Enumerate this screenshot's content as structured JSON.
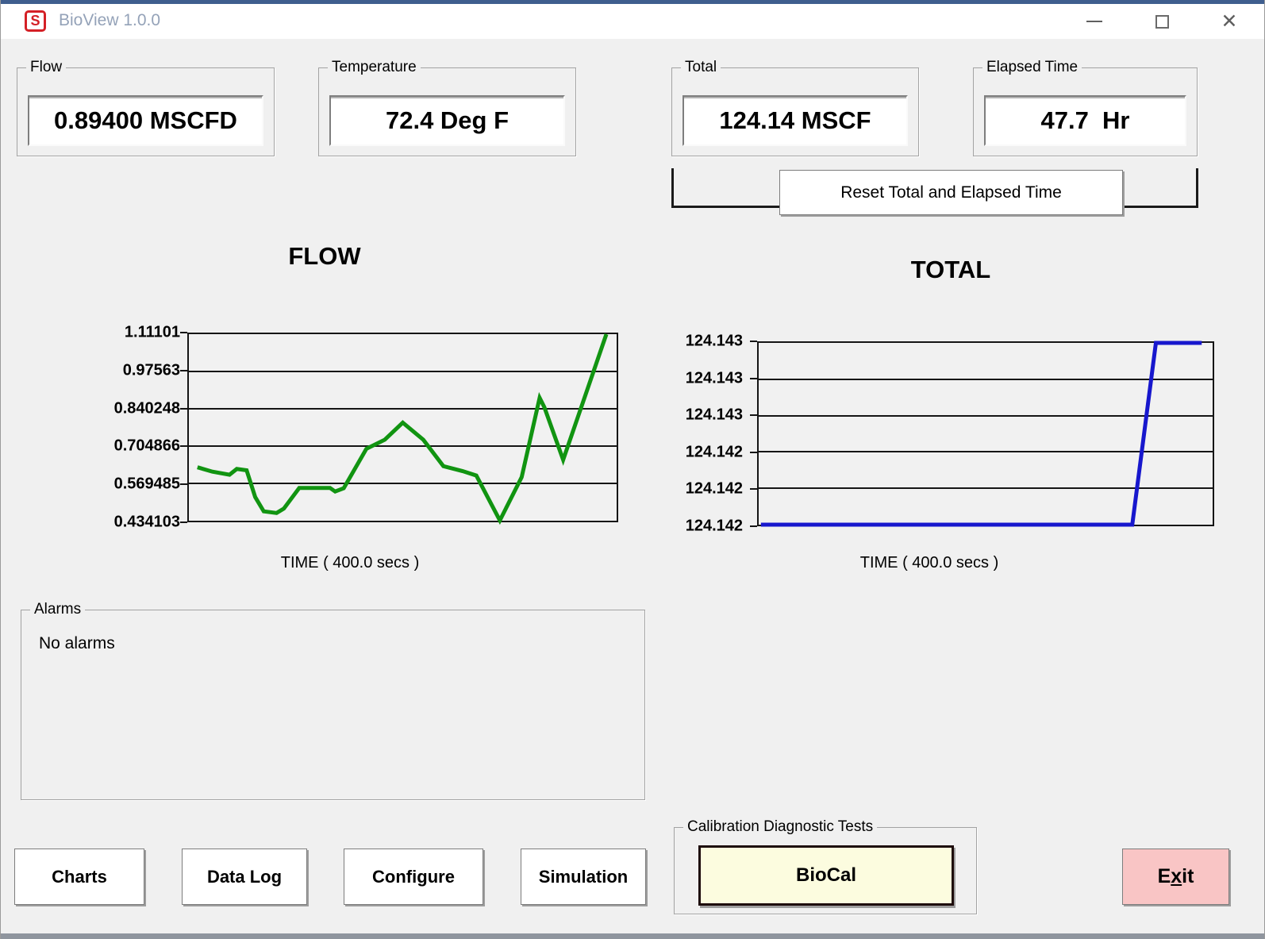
{
  "window": {
    "title": "BioView 1.0.0",
    "icon_letter": "S",
    "accent_color": "#3f5e8e"
  },
  "caption": {
    "minimize_icon": "minimize-icon",
    "maximize_icon": "maximize-icon",
    "close_glyph": "✕"
  },
  "panels": {
    "flow": {
      "label": "Flow",
      "value": "0.89400 MSCFD"
    },
    "temperature": {
      "label": "Temperature",
      "value": "72.4 Deg F"
    },
    "total": {
      "label": "Total",
      "value": "124.14 MSCF"
    },
    "elapsed": {
      "label": "Elapsed Time",
      "value": "47.7  Hr"
    }
  },
  "reset_button": "Reset Total and Elapsed Time",
  "alarms": {
    "label": "Alarms",
    "message": "No alarms"
  },
  "calibration": {
    "label": "Calibration Diagnostic Tests",
    "biocal": "BioCal"
  },
  "buttons": {
    "charts": "Charts",
    "datalog": "Data Log",
    "configure": "Configure",
    "simulation": "Simulation",
    "exit_pre": "E",
    "exit_accel": "x",
    "exit_post": "it"
  },
  "chart_data": [
    {
      "type": "line",
      "title": "FLOW",
      "xlabel": "TIME ( 400.0 secs )",
      "color": "#119411",
      "ylim": [
        0.434103,
        1.11101
      ],
      "ytick_labels": [
        "1.11101",
        "0.97563",
        "0.840248",
        "0.704866",
        "0.569485",
        "0.434103"
      ],
      "grid": true,
      "legend": "none",
      "points": [
        [
          0.02,
          0.628
        ],
        [
          0.055,
          0.612
        ],
        [
          0.095,
          0.601
        ],
        [
          0.112,
          0.622
        ],
        [
          0.135,
          0.617
        ],
        [
          0.155,
          0.52
        ],
        [
          0.175,
          0.468
        ],
        [
          0.205,
          0.462
        ],
        [
          0.222,
          0.478
        ],
        [
          0.258,
          0.553
        ],
        [
          0.33,
          0.553
        ],
        [
          0.342,
          0.54
        ],
        [
          0.362,
          0.552
        ],
        [
          0.415,
          0.695
        ],
        [
          0.458,
          0.728
        ],
        [
          0.5,
          0.79
        ],
        [
          0.548,
          0.728
        ],
        [
          0.595,
          0.632
        ],
        [
          0.64,
          0.614
        ],
        [
          0.672,
          0.598
        ],
        [
          0.727,
          0.435
        ],
        [
          0.778,
          0.592
        ],
        [
          0.82,
          0.88
        ],
        [
          0.831,
          0.846
        ],
        [
          0.875,
          0.655
        ],
        [
          0.976,
          1.11101
        ]
      ]
    },
    {
      "type": "line",
      "title": "TOTAL",
      "xlabel": "TIME ( 400.0 secs )",
      "color": "#1717cd",
      "ylim": [
        124.142,
        124.143
      ],
      "ytick_labels": [
        "124.143",
        "124.143",
        "124.143",
        "124.142",
        "124.142",
        "124.142"
      ],
      "grid": true,
      "legend": "none",
      "points": [
        [
          0.005,
          124.142
        ],
        [
          0.823,
          124.142
        ],
        [
          0.836,
          124.14225
        ],
        [
          0.849,
          124.1425
        ],
        [
          0.862,
          124.14275
        ],
        [
          0.875,
          124.143
        ],
        [
          0.976,
          124.143
        ]
      ]
    }
  ]
}
